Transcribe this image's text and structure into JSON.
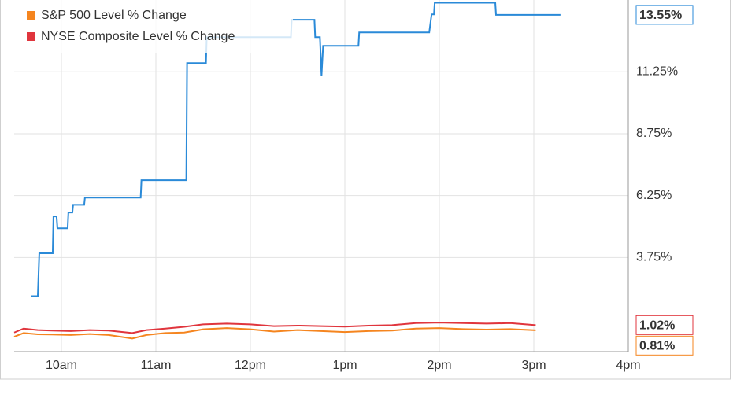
{
  "chart_data": {
    "type": "line",
    "xlim": [
      9.5,
      16
    ],
    "xticks": [
      {
        "value": 10,
        "label": "10am"
      },
      {
        "value": 11,
        "label": "11am"
      },
      {
        "value": 12,
        "label": "12pm"
      },
      {
        "value": 13,
        "label": "1pm"
      },
      {
        "value": 14,
        "label": "2pm"
      },
      {
        "value": 15,
        "label": "3pm"
      },
      {
        "value": 16,
        "label": "4pm"
      }
    ],
    "ylim": [
      -0.05,
      14.15
    ],
    "yticks": [
      {
        "value": 3.75,
        "label": "3.75%"
      },
      {
        "value": 6.25,
        "label": "6.25%"
      },
      {
        "value": 8.75,
        "label": "8.75%"
      },
      {
        "value": 11.25,
        "label": "11.25%"
      }
    ],
    "grid": true,
    "series": [
      {
        "color": "#2a8ad8",
        "x": [
          9.683,
          9.75,
          9.766,
          9.908,
          9.916,
          9.949,
          9.958,
          10.066,
          10.074,
          10.116,
          10.124,
          10.241,
          10.249,
          10.839,
          10.847,
          11.322,
          11.33,
          11.53,
          11.538,
          12.429,
          12.437,
          12.678,
          12.686,
          12.736,
          12.753,
          12.77,
          13.144,
          13.152,
          13.893,
          13.918,
          13.943,
          13.951,
          14.592,
          14.6,
          15.282
        ],
        "values": [
          2.19,
          2.19,
          3.92,
          3.92,
          5.41,
          5.41,
          4.93,
          4.93,
          5.57,
          5.57,
          5.88,
          5.88,
          6.17,
          6.17,
          6.87,
          6.87,
          11.6,
          11.6,
          12.65,
          12.65,
          13.35,
          13.35,
          12.65,
          12.65,
          11.09,
          12.3,
          12.3,
          12.84,
          12.84,
          13.57,
          13.57,
          14.04,
          14.04,
          13.55,
          13.55
        ],
        "last_value": 13.55,
        "last_label": "13.55%"
      },
      {
        "name": "S&P 500 Level % Change",
        "color": "#f5851f",
        "x": [
          9.5,
          9.6,
          9.75,
          9.9,
          10.1,
          10.3,
          10.5,
          10.75,
          10.9,
          11.1,
          11.3,
          11.5,
          11.75,
          12,
          12.25,
          12.5,
          12.75,
          13,
          13.25,
          13.5,
          13.75,
          14,
          14.25,
          14.5,
          14.75,
          15.02
        ],
        "values": [
          0.55,
          0.7,
          0.65,
          0.64,
          0.62,
          0.66,
          0.62,
          0.48,
          0.62,
          0.7,
          0.72,
          0.85,
          0.9,
          0.85,
          0.76,
          0.82,
          0.78,
          0.74,
          0.78,
          0.8,
          0.88,
          0.9,
          0.86,
          0.84,
          0.86,
          0.81
        ],
        "last_value": 0.81,
        "last_label": "0.81%"
      },
      {
        "name": "NYSE Composite Level % Change",
        "color": "#e0353d",
        "x": [
          9.5,
          9.6,
          9.75,
          9.9,
          10.1,
          10.3,
          10.5,
          10.75,
          10.9,
          11.1,
          11.3,
          11.5,
          11.75,
          12,
          12.25,
          12.5,
          12.75,
          13,
          13.25,
          13.5,
          13.75,
          14,
          14.25,
          14.5,
          14.75,
          15.02
        ],
        "values": [
          0.72,
          0.88,
          0.82,
          0.8,
          0.78,
          0.82,
          0.8,
          0.7,
          0.82,
          0.88,
          0.95,
          1.05,
          1.08,
          1.05,
          0.98,
          1.0,
          0.98,
          0.96,
          1.0,
          1.02,
          1.1,
          1.12,
          1.1,
          1.08,
          1.1,
          1.02
        ],
        "last_value": 1.02,
        "last_label": "1.02%"
      }
    ]
  }
}
